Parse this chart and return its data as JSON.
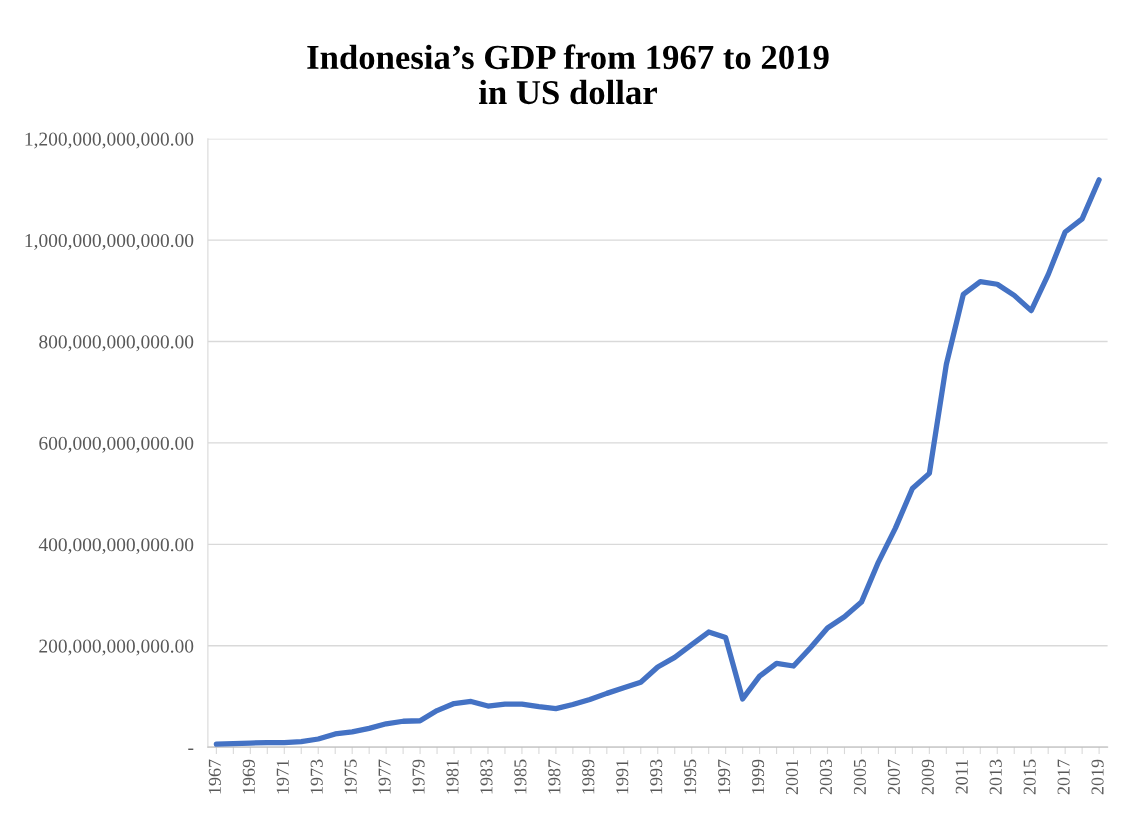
{
  "chart_data": {
    "type": "line",
    "title": "Indonesia’s GDP from 1967 to 2019\nin US dollar",
    "categories": [
      "1967",
      null,
      "1969",
      null,
      "1971",
      null,
      "1973",
      null,
      "1975",
      null,
      "1977",
      null,
      "1979",
      null,
      "1981",
      null,
      "1983",
      null,
      "1985",
      null,
      "1987",
      null,
      "1989",
      null,
      "1991",
      null,
      "1993",
      null,
      "1995",
      null,
      "1997",
      null,
      "1999",
      null,
      "2001",
      null,
      "2003",
      null,
      "2005",
      null,
      "2007",
      null,
      "2009",
      null,
      "2011",
      null,
      "2013",
      null,
      "2015",
      null,
      "2017",
      null,
      "2019"
    ],
    "series": [
      {
        "color": "#4472c4",
        "values": [
          6000000000,
          7000000000,
          8000000000,
          9000000000,
          9000000000,
          11000000000,
          16000000000,
          26000000000,
          30000000000,
          37000000000,
          46000000000,
          51000000000,
          52000000000,
          72000000000,
          86000000000,
          90000000000,
          81000000000,
          85000000000,
          85000000000,
          80000000000,
          76000000000,
          84000000000,
          94000000000,
          106000000000,
          117000000000,
          128000000000,
          158000000000,
          177000000000,
          202000000000,
          227000000000,
          216000000000,
          95000000000,
          140000000000,
          165000000000,
          160000000000,
          196000000000,
          235000000000,
          257000000000,
          286000000000,
          365000000000,
          432000000000,
          510000000000,
          540000000000,
          755000000000,
          893000000000,
          918000000000,
          913000000000,
          891000000000,
          861000000000,
          932000000000,
          1016000000000,
          1042000000000,
          1119000000000
        ]
      }
    ],
    "ylim": [
      0,
      1200000000000
    ],
    "yticks": [
      {
        "value": 0,
        "label": "-"
      },
      {
        "value": 200000000000,
        "label": "200,000,000,000.00"
      },
      {
        "value": 400000000000,
        "label": "400,000,000,000.00"
      },
      {
        "value": 600000000000,
        "label": "600,000,000,000.00"
      },
      {
        "value": 800000000000,
        "label": "800,000,000,000.00"
      },
      {
        "value": 1000000000000,
        "label": "1,000,000,000,000.00"
      },
      {
        "value": 1200000000000,
        "label": "1,200,000,000,000.00"
      }
    ],
    "grid": "y",
    "marker": "none",
    "line_style": "solid"
  }
}
